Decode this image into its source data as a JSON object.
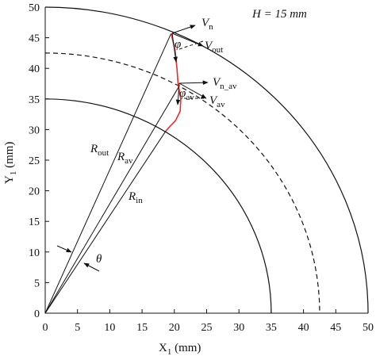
{
  "chart_data": {
    "type": "diagram",
    "annotation": "H = 15 mm",
    "xlabel": {
      "base": "X",
      "sub": "1",
      "tail": " (mm)"
    },
    "ylabel": {
      "base": "Y",
      "sub": "1",
      "tail": " (mm)"
    },
    "xlim": [
      0,
      50
    ],
    "ylim": [
      0,
      50
    ],
    "xticks": [
      0,
      5,
      10,
      15,
      20,
      25,
      30,
      35,
      40,
      45,
      50
    ],
    "yticks": [
      0,
      5,
      10,
      15,
      20,
      25,
      30,
      35,
      40,
      45,
      50
    ],
    "arcs": [
      {
        "radius": 50,
        "dashed": false
      },
      {
        "radius": 42.5,
        "dashed": true
      },
      {
        "radius": 35,
        "dashed": false
      }
    ],
    "radial_lines": {
      "x": [
        19.5,
        20.8,
        18.7
      ],
      "y": [
        45.7,
        37.2,
        29.8
      ]
    },
    "curve": {
      "color": "#e03030",
      "x": [
        19.5,
        20.1,
        20.4,
        20.6,
        21.0,
        20.9,
        20.2,
        18.7
      ],
      "y": [
        45.7,
        43.0,
        40.0,
        37.2,
        35.0,
        33.0,
        31.5,
        29.8
      ]
    },
    "labels": {
      "v_n": {
        "base": "V",
        "sub": "n"
      },
      "v_out": {
        "base": "V",
        "sub": "out"
      },
      "phi": {
        "base": "φ"
      },
      "v_n_av": {
        "base": "V",
        "sub": "n_av"
      },
      "v_av": {
        "base": "V",
        "sub": "av"
      },
      "phi_av": {
        "base": "φ",
        "sub": "av"
      },
      "r_out": {
        "base": "R",
        "sub": "out"
      },
      "r_av": {
        "base": "R",
        "sub": "av"
      },
      "r_in": {
        "base": "R",
        "sub": "in"
      },
      "theta": {
        "base": "θ"
      }
    }
  }
}
